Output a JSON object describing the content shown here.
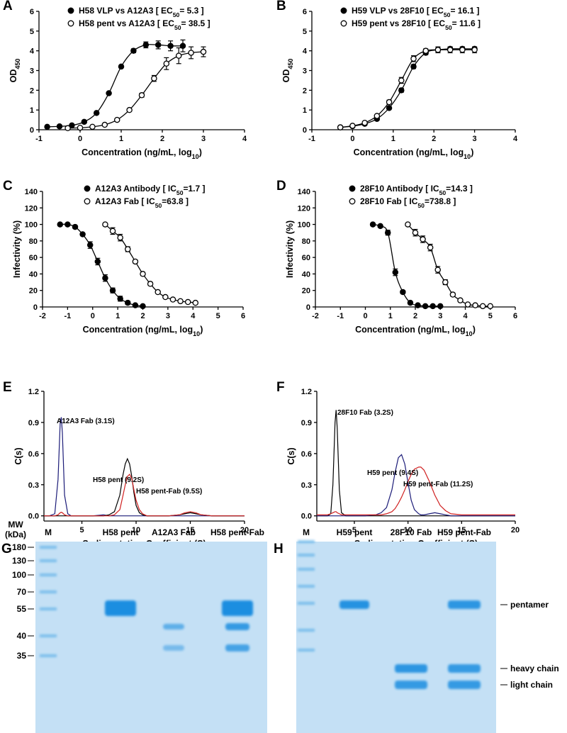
{
  "chart_data": [
    {
      "panel": "A",
      "type": "scatter",
      "x_label": [
        "Concentration (ng/mL, log",
        "10",
        ")"
      ],
      "y_label": [
        "OD",
        "450"
      ],
      "xlim": [
        -1,
        4
      ],
      "ylim": [
        0,
        6
      ],
      "xticks": [
        -1,
        0,
        1,
        2,
        3,
        4
      ],
      "yticks": [
        0,
        1,
        2,
        3,
        4,
        5,
        6
      ],
      "legend": "top-left",
      "series": [
        {
          "name": [
            "H58 VLP vs A12A3 [ EC",
            "50",
            "= 5.3 ]"
          ],
          "marker": "filled",
          "color": "#000000",
          "x": [
            -0.8,
            -0.5,
            -0.2,
            0.1,
            0.4,
            0.7,
            1.0,
            1.3,
            1.6,
            1.9,
            2.2,
            2.5
          ],
          "values": [
            0.15,
            0.17,
            0.22,
            0.4,
            0.85,
            1.85,
            3.2,
            4.0,
            4.3,
            4.3,
            4.25,
            4.25
          ],
          "errors": [
            0,
            0,
            0,
            0,
            0,
            0,
            0,
            0.1,
            0.15,
            0.2,
            0.25,
            0.3
          ]
        },
        {
          "name": [
            "H58 pent vs A12A3 [ EC",
            "50",
            "= 38.5 ]"
          ],
          "marker": "open",
          "color": "#000000",
          "x": [
            -0.3,
            0,
            0.3,
            0.6,
            0.9,
            1.2,
            1.5,
            1.8,
            2.1,
            2.4,
            2.7,
            3.0
          ],
          "values": [
            0.08,
            0.1,
            0.15,
            0.25,
            0.5,
            1.0,
            1.75,
            2.6,
            3.35,
            3.75,
            3.9,
            3.95
          ],
          "errors": [
            0,
            0,
            0,
            0,
            0,
            0.05,
            0.1,
            0.15,
            0.3,
            0.4,
            0.3,
            0.25
          ]
        }
      ]
    },
    {
      "panel": "B",
      "type": "scatter",
      "x_label": [
        "Concentration (ng/mL, log",
        "10",
        ")"
      ],
      "y_label": [
        "OD",
        "450"
      ],
      "xlim": [
        -1,
        4
      ],
      "ylim": [
        0,
        6
      ],
      "xticks": [
        -1,
        0,
        1,
        2,
        3,
        4
      ],
      "yticks": [
        0,
        1,
        2,
        3,
        4,
        5,
        6
      ],
      "legend": "top-left",
      "series": [
        {
          "name": [
            "H59 VLP vs 28F10 [ EC",
            "50",
            "= 16.1 ]"
          ],
          "marker": "filled",
          "color": "#000000",
          "x": [
            -0.3,
            0,
            0.3,
            0.6,
            0.9,
            1.2,
            1.5,
            1.8,
            2.1,
            2.4,
            2.7,
            3.0
          ],
          "values": [
            0.12,
            0.18,
            0.3,
            0.55,
            1.1,
            2.0,
            3.2,
            3.9,
            4.05,
            4.1,
            4.1,
            4.1
          ],
          "errors": [
            0,
            0,
            0,
            0,
            0.05,
            0.1,
            0.1,
            0.1,
            0.15,
            0.1,
            0.1,
            0.1
          ]
        },
        {
          "name": [
            "H59 pent vs 28F10 [ EC",
            "50",
            "= 11.6 ]"
          ],
          "marker": "open",
          "color": "#000000",
          "x": [
            -0.3,
            0,
            0.3,
            0.6,
            0.9,
            1.2,
            1.5,
            1.8,
            2.1,
            2.4,
            2.7,
            3.0
          ],
          "values": [
            0.12,
            0.2,
            0.35,
            0.7,
            1.4,
            2.5,
            3.6,
            4.0,
            4.05,
            4.05,
            4.05,
            4.05
          ],
          "errors": [
            0,
            0,
            0,
            0.05,
            0.1,
            0.15,
            0.15,
            0.1,
            0.1,
            0.15,
            0.15,
            0.15
          ]
        }
      ]
    },
    {
      "panel": "C",
      "type": "scatter",
      "x_label": [
        "Concentration (ng/mL, log",
        "10",
        ")"
      ],
      "y_label": [
        "Infectivity (%)"
      ],
      "xlim": [
        -2,
        6
      ],
      "ylim": [
        0,
        140
      ],
      "xticks": [
        -2,
        -1,
        0,
        1,
        2,
        3,
        4,
        5,
        6
      ],
      "yticks": [
        0,
        20,
        40,
        60,
        80,
        100,
        120,
        140
      ],
      "legend": "top-left",
      "series": [
        {
          "name": [
            "A12A3 Antibody [ IC",
            "50",
            "=1.7 ]"
          ],
          "marker": "filled",
          "color": "#000000",
          "x": [
            -1.3,
            -1.0,
            -0.7,
            -0.4,
            -0.1,
            0.2,
            0.5,
            0.8,
            1.1,
            1.4,
            1.7,
            2.0
          ],
          "values": [
            100,
            100,
            97,
            88,
            75,
            55,
            35,
            20,
            10,
            5,
            2,
            1
          ],
          "errors": [
            0,
            0,
            0,
            0,
            4,
            4,
            4,
            3,
            3,
            2,
            1,
            1
          ]
        },
        {
          "name": [
            "A12A3 Fab [ IC",
            "50",
            "=63.8 ]"
          ],
          "marker": "open",
          "color": "#000000",
          "x": [
            0.5,
            0.8,
            1.1,
            1.4,
            1.7,
            2.0,
            2.3,
            2.6,
            2.9,
            3.2,
            3.5,
            3.8,
            4.1
          ],
          "values": [
            100,
            92,
            84,
            70,
            55,
            40,
            28,
            18,
            12,
            9,
            7,
            6,
            5
          ],
          "errors": [
            0,
            4,
            4,
            3,
            2,
            2,
            2,
            1,
            1,
            1,
            1,
            1,
            1
          ]
        }
      ]
    },
    {
      "panel": "D",
      "type": "scatter",
      "x_label": [
        "Concentration (ng/mL, log",
        "10",
        ")"
      ],
      "y_label": [
        "Infectivity (%)"
      ],
      "xlim": [
        -2,
        6
      ],
      "ylim": [
        0,
        140
      ],
      "xticks": [
        -2,
        -1,
        0,
        1,
        2,
        3,
        4,
        5,
        6
      ],
      "yticks": [
        0,
        20,
        40,
        60,
        80,
        100,
        120,
        140
      ],
      "legend": "top-left",
      "series": [
        {
          "name": [
            "28F10 Antibody [ IC",
            "50",
            "=14.3 ]"
          ],
          "marker": "filled",
          "color": "#000000",
          "x": [
            0.3,
            0.6,
            0.9,
            1.2,
            1.5,
            1.8,
            2.1,
            2.4,
            2.7,
            3.0
          ],
          "values": [
            100,
            98,
            90,
            42,
            18,
            5,
            2,
            1,
            1,
            1
          ],
          "errors": [
            0,
            0,
            3,
            4,
            2,
            1,
            1,
            0,
            0,
            0
          ]
        },
        {
          "name": [
            "28F10 Fab [ IC",
            "50",
            "=738.8 ]"
          ],
          "marker": "open",
          "color": "#000000",
          "x": [
            1.7,
            2.0,
            2.3,
            2.6,
            2.9,
            3.2,
            3.5,
            3.8,
            4.1,
            4.4,
            4.7,
            5.0
          ],
          "values": [
            100,
            90,
            82,
            72,
            45,
            30,
            15,
            8,
            3,
            2,
            1,
            1
          ],
          "errors": [
            0,
            4,
            4,
            4,
            4,
            3,
            2,
            1,
            1,
            1,
            0,
            0
          ]
        }
      ]
    },
    {
      "panel": "E",
      "type": "line",
      "x_label": [
        "Sedimentation Coefficient (S)"
      ],
      "y_label": [
        "C(s)"
      ],
      "xlim": [
        1.5,
        20
      ],
      "ylim": [
        -0.05,
        1.2
      ],
      "xticks": [
        5,
        10,
        15,
        20
      ],
      "yticks": [
        {
          "value": 0,
          "label": "0.0"
        },
        0.3,
        0.6,
        0.9,
        1.2
      ],
      "annotations": [
        "A12A3 Fab (3.1S)",
        "H58 pent (9.2S)",
        "H58 pent-Fab (9.5S)"
      ],
      "x": [
        1.5,
        2,
        2.5,
        2.8,
        3.0,
        3.1,
        3.2,
        3.4,
        3.7,
        4,
        5,
        6,
        7,
        7.5,
        8,
        8.5,
        8.8,
        9.0,
        9.2,
        9.4,
        9.6,
        9.8,
        10.0,
        10.3,
        10.6,
        11,
        11.5,
        12,
        13,
        14,
        14.5,
        15,
        15.5,
        16,
        17,
        18,
        19,
        20
      ],
      "series": [
        {
          "color": "#1b1b78",
          "values": [
            0,
            0,
            0.02,
            0.35,
            0.9,
            0.95,
            0.8,
            0.2,
            0.02,
            0,
            0,
            0,
            0.01,
            0,
            0,
            0,
            0,
            0,
            0,
            0,
            0,
            0,
            0,
            0,
            0,
            0,
            0,
            0,
            0,
            0,
            0,
            0,
            0,
            0,
            0,
            0,
            0,
            0
          ]
        },
        {
          "color": "#000000",
          "values": [
            0,
            0,
            0,
            0,
            0,
            0,
            0,
            0,
            0,
            0,
            0,
            0,
            0,
            0.01,
            0.04,
            0.2,
            0.4,
            0.5,
            0.55,
            0.5,
            0.38,
            0.22,
            0.1,
            0.03,
            0.01,
            0,
            0,
            0,
            0,
            0.01,
            0.02,
            0.03,
            0.02,
            0.01,
            0,
            0,
            0,
            0
          ]
        },
        {
          "color": "#d02020",
          "values": [
            0,
            0,
            0,
            0.01,
            0.03,
            0.035,
            0.03,
            0.01,
            0,
            0,
            0,
            0,
            0,
            0,
            0.01,
            0.06,
            0.2,
            0.3,
            0.38,
            0.4,
            0.36,
            0.25,
            0.15,
            0.06,
            0.02,
            0,
            0,
            0,
            0,
            0.01,
            0.03,
            0.04,
            0.03,
            0.01,
            0,
            0,
            0,
            0
          ]
        }
      ]
    },
    {
      "panel": "F",
      "type": "line",
      "x_label": [
        "Sedimentation Coefficient (S)"
      ],
      "y_label": [
        "C(s)"
      ],
      "xlim": [
        1.5,
        20
      ],
      "ylim": [
        -0.05,
        1.2
      ],
      "xticks": [
        5,
        10,
        15,
        20
      ],
      "yticks": [
        {
          "value": 0,
          "label": "0.0"
        },
        0.3,
        0.6,
        0.9,
        1.2
      ],
      "annotations": [
        "28F10 Fab (3.2S)",
        "H59 pent (9.4S)",
        "H59 pent-Fab (11.2S)"
      ],
      "x": [
        1.5,
        2,
        2.5,
        2.8,
        3.0,
        3.2,
        3.3,
        3.4,
        3.6,
        3.8,
        4.2,
        5,
        6,
        7,
        7.5,
        8,
        8.5,
        8.8,
        9.1,
        9.4,
        9.7,
        10,
        10.3,
        10.6,
        11,
        11.2,
        11.5,
        12,
        12.5,
        13,
        13.5,
        14,
        15,
        16,
        17,
        18,
        19,
        20
      ],
      "series": [
        {
          "color": "#000000",
          "values": [
            0,
            0,
            0,
            0.02,
            0.3,
            0.9,
            1.02,
            0.85,
            0.25,
            0.03,
            0,
            0,
            0,
            0,
            0,
            0,
            0,
            0,
            0,
            0,
            0,
            0,
            0,
            0,
            0,
            0,
            0,
            0,
            0,
            0,
            0,
            0,
            0,
            0,
            0,
            0,
            0,
            0
          ]
        },
        {
          "color": "#1b1b78",
          "values": [
            0,
            0,
            0,
            0,
            0,
            0,
            0,
            0,
            0,
            0,
            0,
            0,
            0,
            0.01,
            0.03,
            0.08,
            0.25,
            0.42,
            0.56,
            0.59,
            0.5,
            0.32,
            0.15,
            0.06,
            0.02,
            0.01,
            0.01,
            0.02,
            0.03,
            0.02,
            0.01,
            0,
            0,
            0,
            0,
            0,
            0,
            0
          ]
        },
        {
          "color": "#d02020",
          "values": [
            0.01,
            0.01,
            0.01,
            0.02,
            0.03,
            0.04,
            0.04,
            0.03,
            0.02,
            0.01,
            0.01,
            0.01,
            0.01,
            0.01,
            0.01,
            0.02,
            0.04,
            0.07,
            0.12,
            0.18,
            0.25,
            0.33,
            0.4,
            0.45,
            0.47,
            0.47,
            0.44,
            0.33,
            0.2,
            0.1,
            0.05,
            0.02,
            0.01,
            0.01,
            0.01,
            0.01,
            0.01,
            0.01
          ]
        }
      ]
    }
  ],
  "gels": [
    {
      "panel": "G",
      "mw_title": [
        "MW",
        "(kDa)"
      ],
      "lanes": [
        "M",
        "H58 pent",
        "A12A3 Fab",
        "H58 pent-Fab"
      ],
      "mw_markers": [
        "180",
        "130",
        "100",
        "70",
        "55",
        "40",
        "35"
      ]
    },
    {
      "panel": "H",
      "lanes": [
        "M",
        "H59 pent",
        "28F10 Fab",
        "H59 pent-Fab"
      ],
      "band_labels": [
        "pentamer",
        "heavy chain",
        "light chain"
      ]
    }
  ]
}
